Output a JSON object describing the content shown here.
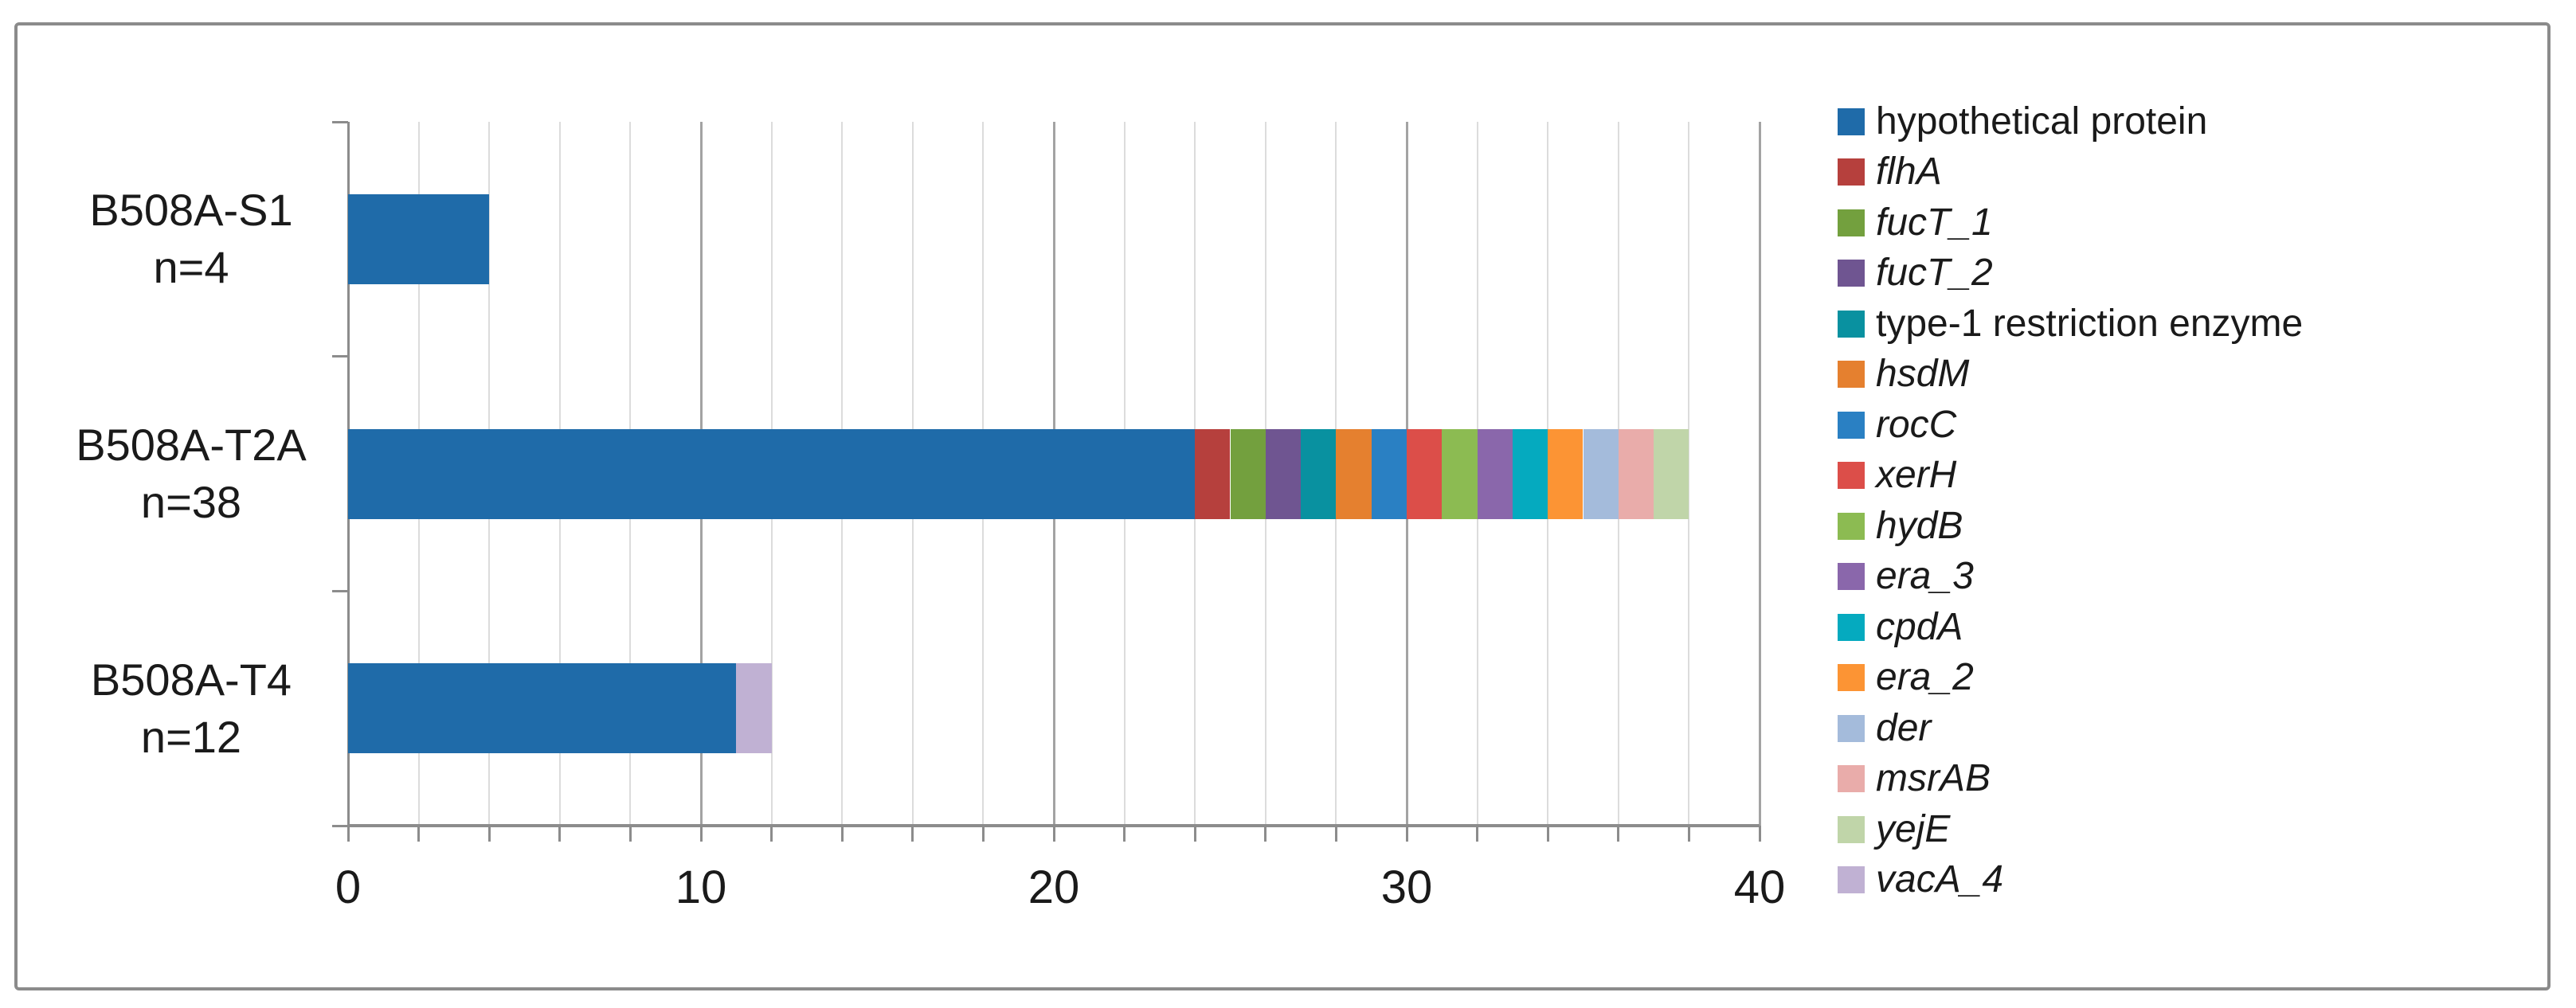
{
  "figure": {
    "background": "#FFFFFF",
    "border_color": "#8B8B8B"
  },
  "chart_data": {
    "type": "bar",
    "orientation": "horizontal",
    "stacked": true,
    "title": "",
    "xlabel": "",
    "ylabel": "",
    "xlim": [
      0,
      40
    ],
    "x_ticks": [
      {
        "value": 0,
        "label": "0"
      },
      {
        "value": 10,
        "label": "10"
      },
      {
        "value": 20,
        "label": "20"
      },
      {
        "value": 30,
        "label": "30"
      },
      {
        "value": 40,
        "label": "40"
      }
    ],
    "minor_grid_interval": 2,
    "major_grid_interval": 10,
    "grid": true,
    "legend_position": "right",
    "categories": [
      {
        "label_line1": "B508A-S1",
        "label_line2": "n=4",
        "total": 4
      },
      {
        "label_line1": "B508A-T2A",
        "label_line2": "n=38",
        "total": 38
      },
      {
        "label_line1": "B508A-T4",
        "label_line2": "n=12",
        "total": 12
      }
    ],
    "series": [
      {
        "name": "hypothetical protein",
        "italic": false,
        "color": "#1F6BA9",
        "values": [
          4,
          24,
          11
        ]
      },
      {
        "name": "flhA",
        "italic": true,
        "color": "#B6403D",
        "values": [
          0,
          1,
          0
        ]
      },
      {
        "name": "fucT_1",
        "italic": true,
        "color": "#73A03E",
        "values": [
          0,
          1,
          0
        ]
      },
      {
        "name": "fucT_2",
        "italic": true,
        "color": "#6F5591",
        "values": [
          0,
          1,
          0
        ]
      },
      {
        "name": "type-1 restriction enzyme",
        "italic": false,
        "color": "#0991A0",
        "values": [
          0,
          1,
          0
        ]
      },
      {
        "name": "hsdM",
        "italic": true,
        "color": "#E5802F",
        "values": [
          0,
          1,
          0
        ]
      },
      {
        "name": "rocC",
        "italic": true,
        "color": "#2A80C3",
        "values": [
          0,
          1,
          0
        ]
      },
      {
        "name": "xerH",
        "italic": true,
        "color": "#DC4E49",
        "values": [
          0,
          1,
          0
        ]
      },
      {
        "name": "hydB",
        "italic": true,
        "color": "#8CBB52",
        "values": [
          0,
          1,
          0
        ]
      },
      {
        "name": "era_3",
        "italic": true,
        "color": "#8A67AB",
        "values": [
          0,
          1,
          0
        ]
      },
      {
        "name": "cpdA",
        "italic": true,
        "color": "#05AABF",
        "values": [
          0,
          1,
          0
        ]
      },
      {
        "name": "era_2",
        "italic": true,
        "color": "#FC9434",
        "values": [
          0,
          1,
          0
        ]
      },
      {
        "name": "der",
        "italic": true,
        "color": "#A4BBDB",
        "values": [
          0,
          1,
          0
        ]
      },
      {
        "name": "msrAB",
        "italic": true,
        "color": "#E9ACAA",
        "values": [
          0,
          1,
          0
        ]
      },
      {
        "name": "yejE",
        "italic": true,
        "color": "#C0D5A9",
        "values": [
          0,
          1,
          0
        ]
      },
      {
        "name": "vacA_4",
        "italic": true,
        "color": "#C0B1D3",
        "values": [
          0,
          0,
          1
        ]
      }
    ]
  }
}
